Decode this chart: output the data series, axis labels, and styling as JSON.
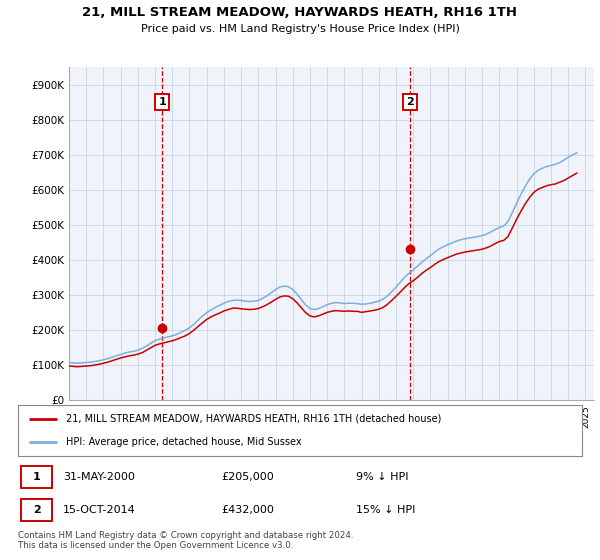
{
  "title": "21, MILL STREAM MEADOW, HAYWARDS HEATH, RH16 1TH",
  "subtitle": "Price paid vs. HM Land Registry's House Price Index (HPI)",
  "ylabel_ticks": [
    "£0",
    "£100K",
    "£200K",
    "£300K",
    "£400K",
    "£500K",
    "£600K",
    "£700K",
    "£800K",
    "£900K"
  ],
  "ytick_values": [
    0,
    100000,
    200000,
    300000,
    400000,
    500000,
    600000,
    700000,
    800000,
    900000
  ],
  "ylim": [
    0,
    950000
  ],
  "xlim_start": 1995.0,
  "xlim_end": 2025.5,
  "sale1_date": 2000.42,
  "sale1_price": 205000,
  "sale1_label": "1",
  "sale2_date": 2014.79,
  "sale2_price": 432000,
  "sale2_label": "2",
  "red_color": "#cc0000",
  "blue_color": "#7aafe0",
  "legend_line1": "21, MILL STREAM MEADOW, HAYWARDS HEATH, RH16 1TH (detached house)",
  "legend_line2": "HPI: Average price, detached house, Mid Sussex",
  "footer": "Contains HM Land Registry data © Crown copyright and database right 2024.\nThis data is licensed under the Open Government Licence v3.0.",
  "background_color": "#f0f4fa",
  "grid_color": "#c8d4e8",
  "hpi_data_x": [
    1995.0,
    1995.25,
    1995.5,
    1995.75,
    1996.0,
    1996.25,
    1996.5,
    1996.75,
    1997.0,
    1997.25,
    1997.5,
    1997.75,
    1998.0,
    1998.25,
    1998.5,
    1998.75,
    1999.0,
    1999.25,
    1999.5,
    1999.75,
    2000.0,
    2000.25,
    2000.5,
    2000.75,
    2001.0,
    2001.25,
    2001.5,
    2001.75,
    2002.0,
    2002.25,
    2002.5,
    2002.75,
    2003.0,
    2003.25,
    2003.5,
    2003.75,
    2004.0,
    2004.25,
    2004.5,
    2004.75,
    2005.0,
    2005.25,
    2005.5,
    2005.75,
    2006.0,
    2006.25,
    2006.5,
    2006.75,
    2007.0,
    2007.25,
    2007.5,
    2007.75,
    2008.0,
    2008.25,
    2008.5,
    2008.75,
    2009.0,
    2009.25,
    2009.5,
    2009.75,
    2010.0,
    2010.25,
    2010.5,
    2010.75,
    2011.0,
    2011.25,
    2011.5,
    2011.75,
    2012.0,
    2012.25,
    2012.5,
    2012.75,
    2013.0,
    2013.25,
    2013.5,
    2013.75,
    2014.0,
    2014.25,
    2014.5,
    2014.75,
    2015.0,
    2015.25,
    2015.5,
    2015.75,
    2016.0,
    2016.25,
    2016.5,
    2016.75,
    2017.0,
    2017.25,
    2017.5,
    2017.75,
    2018.0,
    2018.25,
    2018.5,
    2018.75,
    2019.0,
    2019.25,
    2019.5,
    2019.75,
    2020.0,
    2020.25,
    2020.5,
    2020.75,
    2021.0,
    2021.25,
    2021.5,
    2021.75,
    2022.0,
    2022.25,
    2022.5,
    2022.75,
    2023.0,
    2023.25,
    2023.5,
    2023.75,
    2024.0,
    2024.25,
    2024.5
  ],
  "hpi_data_y": [
    108000,
    107000,
    106000,
    107000,
    108000,
    109000,
    111000,
    113000,
    116000,
    119000,
    123000,
    127000,
    131000,
    135000,
    138000,
    140000,
    143000,
    148000,
    155000,
    163000,
    170000,
    175000,
    178000,
    181000,
    184000,
    188000,
    194000,
    200000,
    207000,
    217000,
    229000,
    240000,
    250000,
    258000,
    265000,
    271000,
    277000,
    282000,
    285000,
    286000,
    285000,
    283000,
    282000,
    283000,
    285000,
    291000,
    298000,
    307000,
    316000,
    323000,
    326000,
    324000,
    316000,
    303000,
    287000,
    272000,
    262000,
    259000,
    262000,
    267000,
    273000,
    277000,
    279000,
    278000,
    276000,
    277000,
    277000,
    276000,
    274000,
    275000,
    277000,
    280000,
    283000,
    289000,
    298000,
    310000,
    323000,
    337000,
    351000,
    362000,
    372000,
    383000,
    394000,
    404000,
    413000,
    423000,
    432000,
    438000,
    444000,
    449000,
    454000,
    458000,
    461000,
    463000,
    465000,
    467000,
    470000,
    474000,
    480000,
    487000,
    493000,
    497000,
    510000,
    535000,
    562000,
    587000,
    610000,
    630000,
    646000,
    656000,
    662000,
    667000,
    670000,
    673000,
    678000,
    685000,
    693000,
    700000,
    706000
  ],
  "price_data_x": [
    1995.0,
    1995.25,
    1995.5,
    1995.75,
    1996.0,
    1996.25,
    1996.5,
    1996.75,
    1997.0,
    1997.25,
    1997.5,
    1997.75,
    1998.0,
    1998.25,
    1998.5,
    1998.75,
    1999.0,
    1999.25,
    1999.5,
    1999.75,
    2000.0,
    2000.25,
    2000.5,
    2000.75,
    2001.0,
    2001.25,
    2001.5,
    2001.75,
    2002.0,
    2002.25,
    2002.5,
    2002.75,
    2003.0,
    2003.25,
    2003.5,
    2003.75,
    2004.0,
    2004.25,
    2004.5,
    2004.75,
    2005.0,
    2005.25,
    2005.5,
    2005.75,
    2006.0,
    2006.25,
    2006.5,
    2006.75,
    2007.0,
    2007.25,
    2007.5,
    2007.75,
    2008.0,
    2008.25,
    2008.5,
    2008.75,
    2009.0,
    2009.25,
    2009.5,
    2009.75,
    2010.0,
    2010.25,
    2010.5,
    2010.75,
    2011.0,
    2011.25,
    2011.5,
    2011.75,
    2012.0,
    2012.25,
    2012.5,
    2012.75,
    2013.0,
    2013.25,
    2013.5,
    2013.75,
    2014.0,
    2014.25,
    2014.5,
    2014.75,
    2015.0,
    2015.25,
    2015.5,
    2015.75,
    2016.0,
    2016.25,
    2016.5,
    2016.75,
    2017.0,
    2017.25,
    2017.5,
    2017.75,
    2018.0,
    2018.25,
    2018.5,
    2018.75,
    2019.0,
    2019.25,
    2019.5,
    2019.75,
    2020.0,
    2020.25,
    2020.5,
    2020.75,
    2021.0,
    2021.25,
    2021.5,
    2021.75,
    2022.0,
    2022.25,
    2022.5,
    2022.75,
    2023.0,
    2023.25,
    2023.5,
    2023.75,
    2024.0,
    2024.25,
    2024.5
  ],
  "price_data_y": [
    98000,
    97000,
    96000,
    97000,
    98000,
    99000,
    101000,
    103000,
    106000,
    109000,
    113000,
    117000,
    121000,
    124000,
    127000,
    129000,
    132000,
    136000,
    143000,
    150000,
    157000,
    161000,
    164000,
    167000,
    170000,
    174000,
    179000,
    184000,
    191000,
    200000,
    211000,
    221000,
    231000,
    238000,
    244000,
    249000,
    255000,
    259000,
    263000,
    263000,
    261000,
    260000,
    259000,
    260000,
    262000,
    267000,
    273000,
    280000,
    288000,
    295000,
    298000,
    297000,
    290000,
    278000,
    264000,
    250000,
    241000,
    238000,
    241000,
    246000,
    251000,
    254000,
    256000,
    255000,
    254000,
    255000,
    254000,
    254000,
    251000,
    253000,
    255000,
    257000,
    260000,
    265000,
    274000,
    285000,
    297000,
    309000,
    322000,
    333000,
    341000,
    351000,
    362000,
    371000,
    379000,
    388000,
    396000,
    402000,
    407000,
    412000,
    417000,
    420000,
    423000,
    425000,
    427000,
    429000,
    431000,
    435000,
    440000,
    447000,
    453000,
    456000,
    467000,
    491000,
    516000,
    539000,
    560000,
    578000,
    593000,
    602000,
    607000,
    612000,
    615000,
    617000,
    622000,
    627000,
    634000,
    641000,
    648000
  ]
}
